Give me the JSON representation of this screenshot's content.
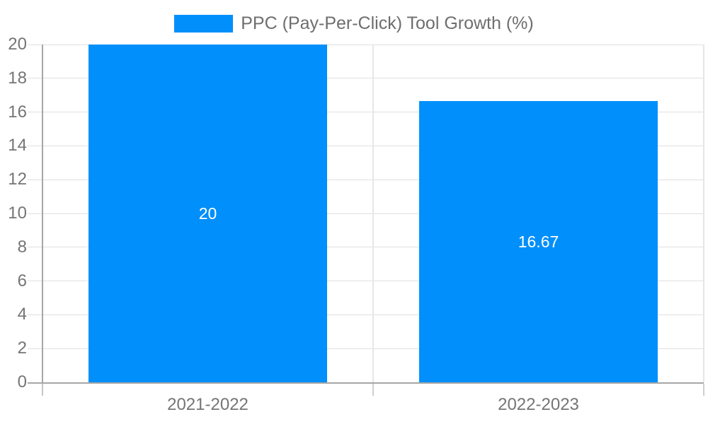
{
  "chart_data": {
    "type": "bar",
    "title": "",
    "legend_label": "PPC (Pay-Per-Click) Tool Growth (%)",
    "legend_position": "top",
    "categories": [
      "2021-2022",
      "2022-2023"
    ],
    "values": [
      20,
      16.67
    ],
    "data_labels": [
      "20",
      "16.67"
    ],
    "y_ticks": [
      0,
      2,
      4,
      6,
      8,
      10,
      12,
      14,
      16,
      18,
      20
    ],
    "ylim": [
      0,
      20
    ],
    "xlabel": "",
    "ylabel": "",
    "grid": true,
    "colors": {
      "bar": "#008FFB",
      "bar_value_label": "#ffffff",
      "axis_text": "#757575",
      "legend_text": "#6e6e6e",
      "gridline": "#e0e0e0",
      "axis_line": "#a6a6a6",
      "minor_tick": "#cfcfcf"
    }
  }
}
